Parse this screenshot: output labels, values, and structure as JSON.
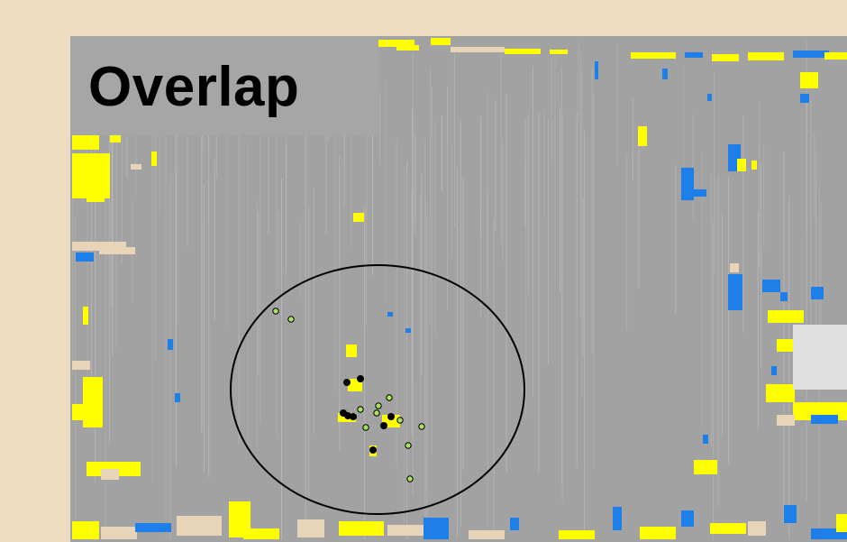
{
  "title": "Overlap",
  "colors": {
    "background": "#eedcc0",
    "map_base": "#a2a2a2",
    "title_box": "#a6a6a6",
    "highlight_yellow": "#ffff00",
    "highlight_blue": "#1f7fe8",
    "highlight_tan": "#e8d4b8",
    "marker_black": "#000000",
    "marker_green": "#a8e060",
    "circle_stroke": "#000000"
  },
  "legend_markers": {
    "black_dot": "marker-black",
    "green_ring": "marker-green"
  }
}
